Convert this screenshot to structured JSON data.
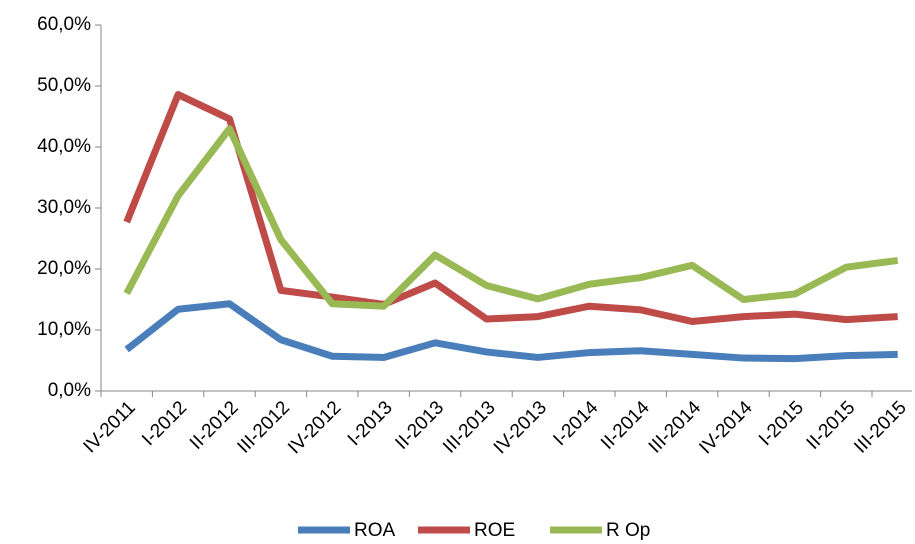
{
  "chart_data": {
    "type": "line",
    "categories": [
      "IV-2011",
      "I-2012",
      "II-2012",
      "III-2012",
      "IV-2012",
      "I-2013",
      "II-2013",
      "III-2013",
      "IV-2013",
      "I-2014",
      "II-2014",
      "III-2014",
      "IV-2014",
      "I-2015",
      "II-2015",
      "III-2015"
    ],
    "series": [
      {
        "name": "ROA",
        "color": "#4a7ebb",
        "values": [
          6.8,
          13.4,
          14.3,
          8.4,
          5.7,
          5.5,
          7.9,
          6.4,
          5.5,
          6.3,
          6.6,
          6.0,
          5.4,
          5.3,
          5.8,
          6.0
        ]
      },
      {
        "name": "ROE",
        "color": "#be4b48",
        "values": [
          27.7,
          48.6,
          44.6,
          16.5,
          15.4,
          14.2,
          17.7,
          11.8,
          12.2,
          13.9,
          13.3,
          11.4,
          12.2,
          12.6,
          11.7,
          12.2
        ]
      },
      {
        "name": "R Op",
        "color": "#98b954",
        "values": [
          16.0,
          32.0,
          43.0,
          24.8,
          14.3,
          13.9,
          22.3,
          17.3,
          15.1,
          17.5,
          18.6,
          20.6,
          15.0,
          15.9,
          20.3,
          21.4
        ]
      }
    ],
    "ylim": [
      0,
      60
    ],
    "yticks": [
      {
        "value": 0,
        "label": "0,0%"
      },
      {
        "value": 10,
        "label": "10,0%"
      },
      {
        "value": 20,
        "label": "20,0%"
      },
      {
        "value": 30,
        "label": "30,0%"
      },
      {
        "value": 40,
        "label": "40,0%"
      },
      {
        "value": 50,
        "label": "50,0%"
      },
      {
        "value": 60,
        "label": "60,0%"
      }
    ],
    "grid": false,
    "legend": "bottom"
  }
}
